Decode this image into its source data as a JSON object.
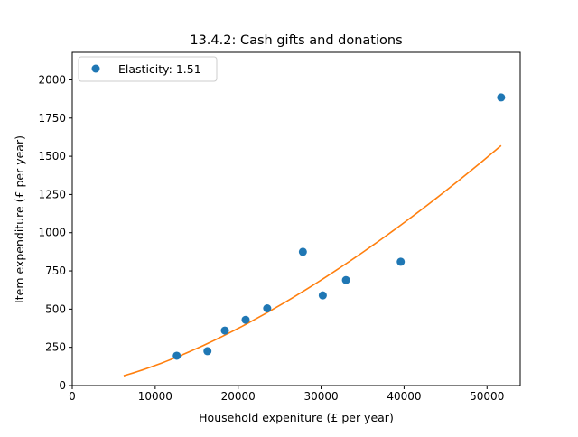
{
  "chart_data": {
    "type": "scatter",
    "title": "13.4.2: Cash gifts and donations",
    "xlabel": "Household expeniture (£ per year)",
    "ylabel": "Item expenditure (£ per year)",
    "xlim": [
      0,
      54000
    ],
    "ylim": [
      0,
      2180
    ],
    "x_ticks": [
      0,
      10000,
      20000,
      30000,
      40000,
      50000
    ],
    "x_tick_labels": [
      "0",
      "10000",
      "20000",
      "30000",
      "40000",
      "50000"
    ],
    "y_ticks": [
      0,
      250,
      500,
      750,
      1000,
      1250,
      1500,
      1750,
      2000
    ],
    "y_tick_labels": [
      "0",
      "250",
      "500",
      "750",
      "1000",
      "1250",
      "1500",
      "1750",
      "2000"
    ],
    "grid": false,
    "legend_position": "top-left",
    "series": [
      {
        "name": "Elasticity: 1.51",
        "kind": "scatter",
        "color": "#1f77b4",
        "points": [
          {
            "x": 12600,
            "y": 195
          },
          {
            "x": 16300,
            "y": 225
          },
          {
            "x": 18400,
            "y": 360
          },
          {
            "x": 20900,
            "y": 430
          },
          {
            "x": 23500,
            "y": 505
          },
          {
            "x": 27800,
            "y": 875
          },
          {
            "x": 30200,
            "y": 590
          },
          {
            "x": 33000,
            "y": 690
          },
          {
            "x": 39600,
            "y": 810
          },
          {
            "x": 51700,
            "y": 1885
          }
        ]
      },
      {
        "kind": "line",
        "color": "#ff7f0e",
        "fit": {
          "form": "power",
          "exponent": 1.51,
          "anchor": {
            "x": 51700,
            "y": 1570
          },
          "x_range": [
            6200,
            51700
          ]
        }
      }
    ]
  }
}
